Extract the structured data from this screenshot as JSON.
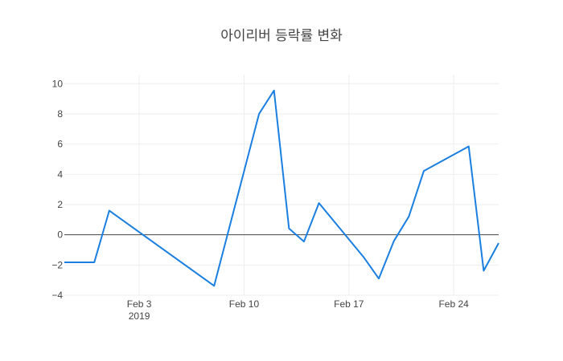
{
  "chart_data": {
    "type": "line",
    "title": "아이리버 등락률 변화",
    "xlabel": "",
    "ylabel": "",
    "x_ticks": [
      {
        "date": "2019-02-03",
        "label": "Feb 3",
        "sublabel": "2019"
      },
      {
        "date": "2019-02-10",
        "label": "Feb 10"
      },
      {
        "date": "2019-02-17",
        "label": "Feb 17"
      },
      {
        "date": "2019-02-24",
        "label": "Feb 24"
      }
    ],
    "y_ticks": [
      {
        "value": 10,
        "label": "10"
      },
      {
        "value": 8,
        "label": "8"
      },
      {
        "value": 6,
        "label": "6"
      },
      {
        "value": 4,
        "label": "4"
      },
      {
        "value": 2,
        "label": "2"
      },
      {
        "value": 0,
        "label": "0"
      },
      {
        "value": -2,
        "label": "−2"
      },
      {
        "value": -4,
        "label": "−4"
      }
    ],
    "xlim": [
      "2019-01-29",
      "2019-02-27"
    ],
    "ylim": [
      -4,
      10.6
    ],
    "grid": true,
    "zero_line": true,
    "series_color": "#1a7fe0",
    "points": [
      {
        "x": "2019-01-29",
        "y": -1.82
      },
      {
        "x": "2019-01-31",
        "y": -1.82
      },
      {
        "x": "2019-02-01",
        "y": 1.6
      },
      {
        "x": "2019-02-08",
        "y": -3.38
      },
      {
        "x": "2019-02-11",
        "y": 8.0
      },
      {
        "x": "2019-02-12",
        "y": 9.55
      },
      {
        "x": "2019-02-13",
        "y": 0.42
      },
      {
        "x": "2019-02-14",
        "y": -0.45
      },
      {
        "x": "2019-02-15",
        "y": 2.1
      },
      {
        "x": "2019-02-18",
        "y": -1.5
      },
      {
        "x": "2019-02-19",
        "y": -2.9
      },
      {
        "x": "2019-02-20",
        "y": -0.42
      },
      {
        "x": "2019-02-21",
        "y": 1.2
      },
      {
        "x": "2019-02-22",
        "y": 4.22
      },
      {
        "x": "2019-02-25",
        "y": 5.85
      },
      {
        "x": "2019-02-26",
        "y": -2.38
      },
      {
        "x": "2019-02-27",
        "y": -0.55
      }
    ]
  }
}
